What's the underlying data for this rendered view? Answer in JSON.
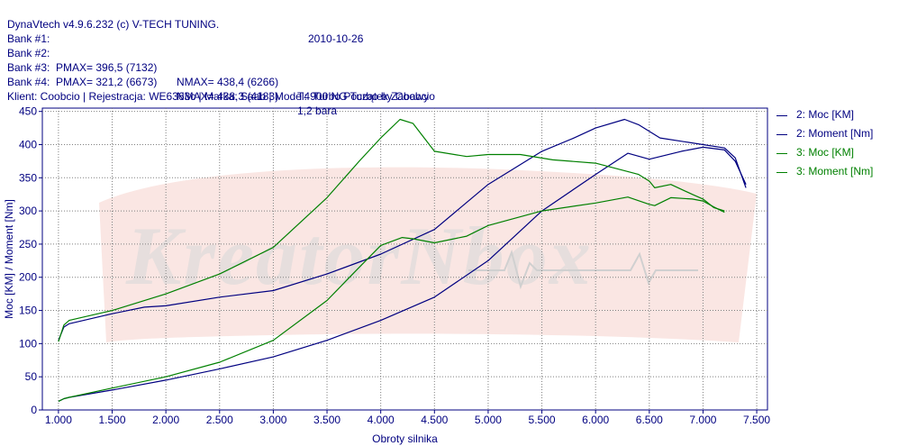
{
  "header": {
    "app_line": "DynaVtech v4.9.6.232 (c) V-TECH TUNING.",
    "date": "2010-10-26",
    "bank1": "Bank #1:",
    "bank2_label": "Bank #2:",
    "bank2_pmax": "PMAX= 396,5 (7132)",
    "bank2_nmax": "NMAX= 438,4 (6266)",
    "bank2_desc": "T4 Turbo Początek Zabawy",
    "bank3_label": "Bank #3:",
    "bank3_pmax": "PMAX= 321,2 (6673)",
    "bank3_nmax": "NMAX= 438,3 (4183)",
    "bank3_desc": "1,2 bara",
    "bank4": "Bank #4:",
    "client": "Klient: Coobcio | Rejestracja: WE6363c | Marka: Saab | Model: 900 NG Turbo by Coobcio"
  },
  "watermark": "KreatorNbox",
  "colors": {
    "blue": "#000080",
    "green": "#008000",
    "axis": "#000080",
    "grid": "#808080"
  },
  "chart_data": {
    "type": "line",
    "xlabel": "Obroty silnika",
    "ylabel": "Moc [KM] / Moment [Nm]",
    "xlim": [
      0.85,
      7.6
    ],
    "ylim": [
      0,
      455
    ],
    "xticks": [
      1.0,
      1.5,
      2.0,
      2.5,
      3.0,
      3.5,
      4.0,
      4.5,
      5.0,
      5.5,
      6.0,
      6.5,
      7.0,
      7.5
    ],
    "xtick_labels": [
      "1.000",
      "1.500",
      "2.000",
      "2.500",
      "3.000",
      "3.500",
      "4.000",
      "4.500",
      "5.000",
      "5.500",
      "6.000",
      "6.500",
      "7.000",
      "7.500"
    ],
    "yticks": [
      0,
      50,
      100,
      150,
      200,
      250,
      300,
      350,
      400,
      450
    ],
    "ytick_labels": [
      "0",
      "50",
      "100",
      "150",
      "200",
      "250",
      "300",
      "350",
      "400",
      "450"
    ],
    "legend_position": "right",
    "series": [
      {
        "name": "2: Moc [KM]",
        "color": "#000080",
        "x": [
          1.0,
          1.05,
          1.1,
          1.5,
          2.0,
          2.5,
          3.0,
          3.5,
          4.0,
          4.5,
          5.0,
          5.5,
          6.0,
          6.3,
          6.5,
          6.8,
          7.0,
          7.2,
          7.3,
          7.4
        ],
        "y": [
          13,
          17,
          19,
          30,
          45,
          62,
          80,
          105,
          135,
          170,
          225,
          300,
          355,
          387,
          378,
          390,
          396,
          392,
          375,
          340
        ]
      },
      {
        "name": "2: Moment [Nm]",
        "color": "#000080",
        "x": [
          1.0,
          1.05,
          1.1,
          1.5,
          1.8,
          2.0,
          2.5,
          3.0,
          3.5,
          4.0,
          4.5,
          5.0,
          5.5,
          5.8,
          6.0,
          6.27,
          6.4,
          6.6,
          6.8,
          7.0,
          7.2,
          7.3,
          7.4
        ],
        "y": [
          105,
          125,
          130,
          145,
          155,
          157,
          170,
          180,
          205,
          235,
          272,
          340,
          390,
          410,
          425,
          438,
          430,
          410,
          405,
          400,
          395,
          380,
          335
        ]
      },
      {
        "name": "3: Moc [KM]",
        "color": "#008000",
        "x": [
          1.0,
          1.05,
          1.1,
          1.5,
          2.0,
          2.5,
          3.0,
          3.5,
          3.8,
          4.0,
          4.2,
          4.3,
          4.5,
          4.8,
          5.0,
          5.5,
          6.0,
          6.3,
          6.5,
          6.55,
          6.7,
          6.9,
          7.0,
          7.1,
          7.2
        ],
        "y": [
          13,
          17,
          19,
          33,
          50,
          72,
          105,
          165,
          215,
          248,
          260,
          258,
          252,
          262,
          278,
          300,
          312,
          321,
          310,
          308,
          320,
          318,
          315,
          306,
          298
        ]
      },
      {
        "name": "3: Moment [Nm]",
        "color": "#008000",
        "x": [
          1.0,
          1.05,
          1.1,
          1.5,
          2.0,
          2.5,
          3.0,
          3.5,
          3.8,
          4.0,
          4.18,
          4.3,
          4.5,
          4.8,
          5.0,
          5.3,
          5.6,
          6.0,
          6.4,
          6.5,
          6.55,
          6.7,
          6.9,
          7.0,
          7.1,
          7.2
        ],
        "y": [
          103,
          128,
          135,
          150,
          175,
          205,
          245,
          320,
          375,
          410,
          438,
          432,
          390,
          382,
          385,
          385,
          377,
          372,
          355,
          345,
          335,
          340,
          325,
          318,
          305,
          300
        ]
      }
    ]
  }
}
